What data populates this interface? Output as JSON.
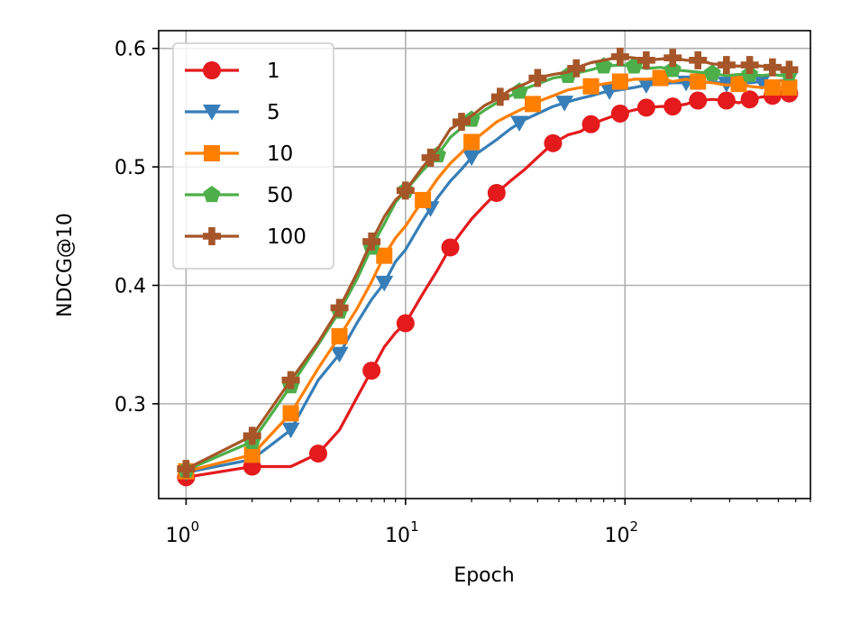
{
  "chart_data": {
    "type": "line",
    "title": "",
    "xlabel": "Epoch",
    "ylabel": "NDCG@10",
    "xscale": "log",
    "xlim": [
      0.75,
      700
    ],
    "ylim": [
      0.22,
      0.615
    ],
    "grid": true,
    "legend_position": "upper-left",
    "x_ticks": [
      {
        "value": 1,
        "base": "10",
        "exp": "0"
      },
      {
        "value": 10,
        "base": "10",
        "exp": "1"
      },
      {
        "value": 100,
        "base": "10",
        "exp": "2"
      }
    ],
    "y_ticks": [
      {
        "value": 0.3,
        "label": "0.3"
      },
      {
        "value": 0.4,
        "label": "0.4"
      },
      {
        "value": 0.5,
        "label": "0.5"
      },
      {
        "value": 0.6,
        "label": "0.6"
      }
    ],
    "series": [
      {
        "name": "1",
        "color": "#e41a1c",
        "marker": "circle",
        "points": [
          [
            1,
            0.238
          ],
          [
            2,
            0.247
          ],
          [
            3,
            0.247
          ],
          [
            4,
            0.258
          ],
          [
            5,
            0.278
          ],
          [
            6,
            0.305
          ],
          [
            7,
            0.328
          ],
          [
            8,
            0.348
          ],
          [
            9,
            0.36
          ],
          [
            10,
            0.368
          ],
          [
            12,
            0.393
          ],
          [
            14,
            0.413
          ],
          [
            16,
            0.432
          ],
          [
            18,
            0.445
          ],
          [
            20,
            0.456
          ],
          [
            23,
            0.468
          ],
          [
            26,
            0.478
          ],
          [
            30,
            0.488
          ],
          [
            35,
            0.498
          ],
          [
            40,
            0.508
          ],
          [
            47,
            0.52
          ],
          [
            55,
            0.527
          ],
          [
            63,
            0.53
          ],
          [
            70,
            0.536
          ],
          [
            80,
            0.54
          ],
          [
            95,
            0.545
          ],
          [
            110,
            0.548
          ],
          [
            125,
            0.55
          ],
          [
            145,
            0.551
          ],
          [
            165,
            0.551
          ],
          [
            190,
            0.553
          ],
          [
            215,
            0.556
          ],
          [
            250,
            0.557
          ],
          [
            290,
            0.556
          ],
          [
            330,
            0.554
          ],
          [
            370,
            0.557
          ],
          [
            420,
            0.559
          ],
          [
            470,
            0.56
          ],
          [
            520,
            0.561
          ],
          [
            560,
            0.562
          ]
        ],
        "marker_x": [
          1,
          2,
          4,
          7,
          10,
          16,
          26,
          47,
          70,
          95,
          125,
          165,
          215,
          290,
          370,
          470,
          560
        ]
      },
      {
        "name": "5",
        "color": "#377eb8",
        "marker": "triangle-down",
        "points": [
          [
            1,
            0.242
          ],
          [
            2,
            0.253
          ],
          [
            3,
            0.278
          ],
          [
            4,
            0.32
          ],
          [
            5,
            0.342
          ],
          [
            6,
            0.368
          ],
          [
            7,
            0.388
          ],
          [
            8,
            0.402
          ],
          [
            9,
            0.42
          ],
          [
            10,
            0.43
          ],
          [
            12,
            0.455
          ],
          [
            14,
            0.474
          ],
          [
            16,
            0.488
          ],
          [
            18,
            0.498
          ],
          [
            20,
            0.508
          ],
          [
            23,
            0.516
          ],
          [
            26,
            0.523
          ],
          [
            30,
            0.532
          ],
          [
            35,
            0.54
          ],
          [
            40,
            0.545
          ],
          [
            47,
            0.551
          ],
          [
            55,
            0.555
          ],
          [
            63,
            0.558
          ],
          [
            70,
            0.56
          ],
          [
            80,
            0.563
          ],
          [
            95,
            0.565
          ],
          [
            110,
            0.567
          ],
          [
            125,
            0.569
          ],
          [
            145,
            0.57
          ],
          [
            165,
            0.571
          ],
          [
            190,
            0.571
          ],
          [
            215,
            0.57
          ],
          [
            250,
            0.572
          ],
          [
            290,
            0.57
          ],
          [
            330,
            0.571
          ],
          [
            370,
            0.571
          ],
          [
            420,
            0.572
          ],
          [
            470,
            0.572
          ],
          [
            520,
            0.573
          ],
          [
            560,
            0.574
          ]
        ],
        "marker_x": [
          1,
          3,
          5,
          8,
          13,
          20,
          33,
          53,
          85,
          125,
          190,
          290,
          420,
          560
        ]
      },
      {
        "name": "10",
        "color": "#ff7f00",
        "marker": "square",
        "points": [
          [
            1,
            0.243
          ],
          [
            2,
            0.257
          ],
          [
            3,
            0.292
          ],
          [
            4,
            0.33
          ],
          [
            5,
            0.357
          ],
          [
            6,
            0.38
          ],
          [
            7,
            0.403
          ],
          [
            8,
            0.425
          ],
          [
            9,
            0.44
          ],
          [
            10,
            0.45
          ],
          [
            12,
            0.472
          ],
          [
            14,
            0.49
          ],
          [
            16,
            0.503
          ],
          [
            18,
            0.512
          ],
          [
            20,
            0.521
          ],
          [
            23,
            0.53
          ],
          [
            26,
            0.538
          ],
          [
            30,
            0.544
          ],
          [
            35,
            0.55
          ],
          [
            40,
            0.555
          ],
          [
            47,
            0.56
          ],
          [
            55,
            0.565
          ],
          [
            63,
            0.567
          ],
          [
            70,
            0.568
          ],
          [
            80,
            0.57
          ],
          [
            95,
            0.572
          ],
          [
            110,
            0.574
          ],
          [
            125,
            0.574
          ],
          [
            145,
            0.575
          ],
          [
            165,
            0.572
          ],
          [
            190,
            0.574
          ],
          [
            215,
            0.572
          ],
          [
            250,
            0.571
          ],
          [
            290,
            0.569
          ],
          [
            330,
            0.57
          ],
          [
            370,
            0.568
          ],
          [
            420,
            0.567
          ],
          [
            470,
            0.567
          ],
          [
            520,
            0.567
          ],
          [
            560,
            0.567
          ]
        ],
        "marker_x": [
          1,
          2,
          3,
          5,
          8,
          12,
          20,
          38,
          70,
          95,
          145,
          215,
          330,
          470,
          560
        ]
      },
      {
        "name": "50",
        "color": "#4daf4a",
        "marker": "pentagon",
        "points": [
          [
            1,
            0.244
          ],
          [
            2,
            0.268
          ],
          [
            3,
            0.315
          ],
          [
            4,
            0.35
          ],
          [
            5,
            0.378
          ],
          [
            6,
            0.405
          ],
          [
            7,
            0.432
          ],
          [
            8,
            0.452
          ],
          [
            9,
            0.47
          ],
          [
            10,
            0.48
          ],
          [
            12,
            0.497
          ],
          [
            14,
            0.51
          ],
          [
            16,
            0.525
          ],
          [
            18,
            0.533
          ],
          [
            20,
            0.54
          ],
          [
            23,
            0.548
          ],
          [
            26,
            0.554
          ],
          [
            30,
            0.56
          ],
          [
            35,
            0.566
          ],
          [
            40,
            0.57
          ],
          [
            47,
            0.575
          ],
          [
            55,
            0.577
          ],
          [
            63,
            0.58
          ],
          [
            70,
            0.582
          ],
          [
            80,
            0.585
          ],
          [
            95,
            0.586
          ],
          [
            110,
            0.585
          ],
          [
            125,
            0.583
          ],
          [
            145,
            0.584
          ],
          [
            165,
            0.582
          ],
          [
            190,
            0.581
          ],
          [
            215,
            0.58
          ],
          [
            250,
            0.579
          ],
          [
            290,
            0.577
          ],
          [
            330,
            0.578
          ],
          [
            370,
            0.578
          ],
          [
            420,
            0.577
          ],
          [
            470,
            0.578
          ],
          [
            520,
            0.577
          ],
          [
            560,
            0.579
          ]
        ],
        "marker_x": [
          1,
          2,
          3,
          5,
          7,
          10,
          14,
          20,
          33,
          55,
          80,
          110,
          165,
          250,
          370,
          560
        ]
      },
      {
        "name": "100",
        "color": "#a65628",
        "marker": "plus",
        "points": [
          [
            1,
            0.245
          ],
          [
            2,
            0.273
          ],
          [
            3,
            0.32
          ],
          [
            4,
            0.352
          ],
          [
            5,
            0.381
          ],
          [
            6,
            0.41
          ],
          [
            7,
            0.437
          ],
          [
            8,
            0.458
          ],
          [
            9,
            0.472
          ],
          [
            10,
            0.48
          ],
          [
            12,
            0.5
          ],
          [
            14,
            0.515
          ],
          [
            16,
            0.532
          ],
          [
            18,
            0.538
          ],
          [
            20,
            0.543
          ],
          [
            23,
            0.552
          ],
          [
            26,
            0.557
          ],
          [
            30,
            0.565
          ],
          [
            35,
            0.57
          ],
          [
            40,
            0.575
          ],
          [
            47,
            0.578
          ],
          [
            55,
            0.58
          ],
          [
            63,
            0.585
          ],
          [
            70,
            0.588
          ],
          [
            80,
            0.59
          ],
          [
            95,
            0.593
          ],
          [
            110,
            0.592
          ],
          [
            125,
            0.59
          ],
          [
            145,
            0.591
          ],
          [
            165,
            0.592
          ],
          [
            190,
            0.59
          ],
          [
            215,
            0.59
          ],
          [
            250,
            0.587
          ],
          [
            290,
            0.586
          ],
          [
            330,
            0.585
          ],
          [
            370,
            0.586
          ],
          [
            420,
            0.585
          ],
          [
            470,
            0.584
          ],
          [
            520,
            0.583
          ],
          [
            560,
            0.582
          ]
        ],
        "marker_x": [
          1,
          2,
          3,
          5,
          7,
          10,
          13,
          18,
          27,
          40,
          60,
          95,
          125,
          165,
          215,
          290,
          370,
          470,
          560
        ]
      }
    ]
  }
}
